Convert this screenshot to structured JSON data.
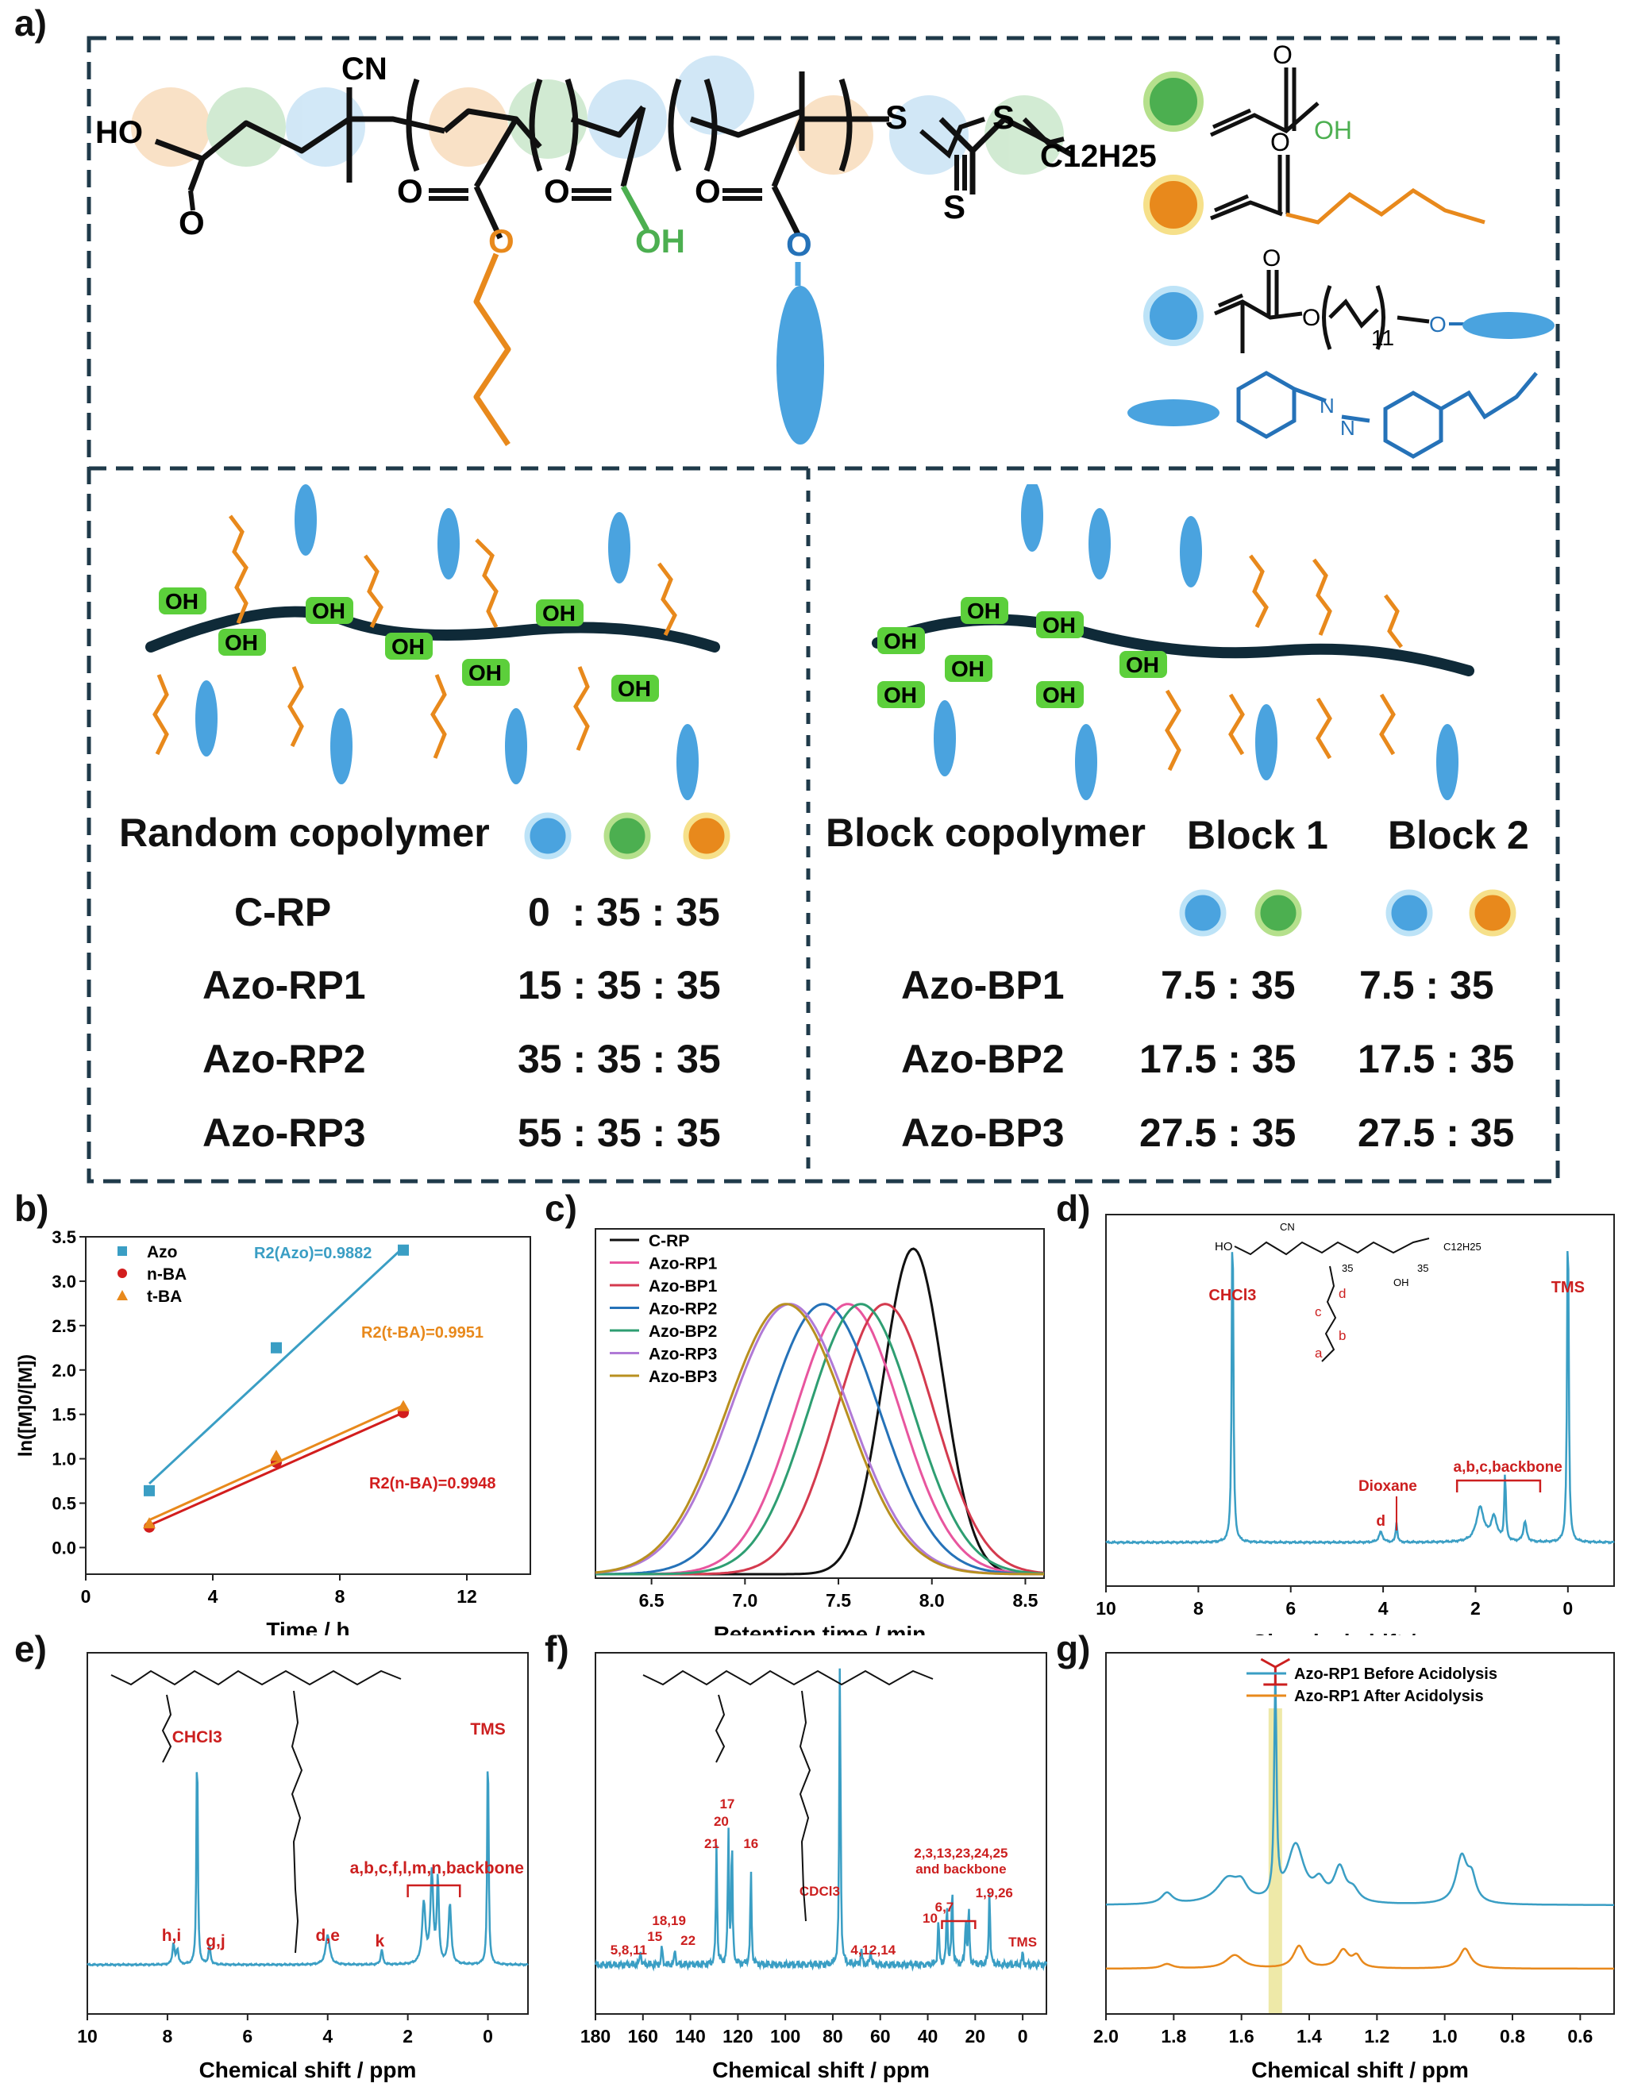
{
  "panel_labels": {
    "a": "a)",
    "b": "b)",
    "c": "c)",
    "d": "d)",
    "e": "e)",
    "f": "f)",
    "g": "g)"
  },
  "structure_top": {
    "cn": "CN",
    "ho": "HO",
    "o": "O",
    "oh": "OH",
    "s": "S",
    "c12h25": "C12H25",
    "legend_acid_oh": "OH",
    "legend_methacrylate_o": "O",
    "legend_n11": "11",
    "legend_n": "N"
  },
  "random": {
    "title": "Random copolymer",
    "oh_label": "OH",
    "rows": [
      {
        "name": "C-RP",
        "ratio": "0  : 35 : 35"
      },
      {
        "name": "Azo-RP1",
        "ratio": "15 : 35 : 35"
      },
      {
        "name": "Azo-RP2",
        "ratio": "35 : 35 : 35"
      },
      {
        "name": "Azo-RP3",
        "ratio": "55 : 35 : 35"
      }
    ]
  },
  "block": {
    "title": "Block copolymer",
    "block1": "Block 1",
    "block2": "Block 2",
    "oh_label": "OH",
    "rows": [
      {
        "name": "Azo-BP1",
        "r1": "7.5 : 35",
        "r2": "7.5 : 35"
      },
      {
        "name": "Azo-BP2",
        "r1": "17.5 : 35",
        "r2": "17.5 : 35"
      },
      {
        "name": "Azo-BP3",
        "r1": "27.5 : 35",
        "r2": "27.5 : 35"
      }
    ]
  },
  "colors": {
    "blue": "#4aa3df",
    "green": "#4caf50",
    "orange": "#e8891c",
    "red": "#cc1f1f",
    "teal": "#3a9ec4",
    "dash": "#1f3a4a"
  },
  "chart_data": [
    {
      "id": "b",
      "type": "scatter",
      "xlabel": "Time / h",
      "ylabel": "ln([M]0/[M])",
      "xlim": [
        0,
        14
      ],
      "ylim": [
        -0.3,
        3.5
      ],
      "xticks": [
        "0",
        "4",
        "8",
        "12"
      ],
      "yticks": [
        "0.0",
        "0.5",
        "1.0",
        "1.5",
        "2.0",
        "2.5",
        "3.0",
        "3.5"
      ],
      "series": [
        {
          "name": "Azo",
          "color": "#3a9ec4",
          "x": [
            2,
            6,
            10
          ],
          "y": [
            0.64,
            2.25,
            3.35
          ],
          "fit": [
            [
              2,
              0.72
            ],
            [
              10,
              3.38
            ]
          ],
          "r2": "R2(Azo)=0.9882"
        },
        {
          "name": "n-BA",
          "color": "#d21d1d",
          "x": [
            2,
            6,
            10
          ],
          "y": [
            0.23,
            0.96,
            1.52
          ],
          "fit": [
            [
              2,
              0.25
            ],
            [
              10,
              1.52
            ]
          ],
          "r2": "R2(n-BA)=0.9948"
        },
        {
          "name": "t-BA",
          "color": "#e8891c",
          "x": [
            2,
            6,
            10
          ],
          "y": [
            0.27,
            1.03,
            1.59
          ],
          "fit": [
            [
              2,
              0.31
            ],
            [
              10,
              1.6
            ]
          ],
          "r2": "R2(t-BA)=0.9951"
        }
      ]
    },
    {
      "id": "c",
      "type": "line",
      "xlabel": "Retention time / min",
      "xlim": [
        6.2,
        8.6
      ],
      "xticks": [
        "6.5",
        "7.0",
        "7.5",
        "8.0",
        "8.5"
      ],
      "series": [
        {
          "name": "C-RP",
          "color": "#111111",
          "center": 7.9,
          "width": 0.16,
          "height": 1.0
        },
        {
          "name": "Azo-RP1",
          "color": "#e8559e",
          "center": 7.55,
          "width": 0.28,
          "height": 0.83
        },
        {
          "name": "Azo-BP1",
          "color": "#d43a4e",
          "center": 7.75,
          "width": 0.26,
          "height": 0.83
        },
        {
          "name": "Azo-RP2",
          "color": "#2572b8",
          "center": 7.42,
          "width": 0.3,
          "height": 0.83
        },
        {
          "name": "Azo-BP2",
          "color": "#2e9e72",
          "center": 7.62,
          "width": 0.28,
          "height": 0.83
        },
        {
          "name": "Azo-RP3",
          "color": "#b07ad6",
          "center": 7.24,
          "width": 0.32,
          "height": 0.83
        },
        {
          "name": "Azo-BP3",
          "color": "#b89020",
          "center": 7.22,
          "width": 0.32,
          "height": 0.83
        }
      ]
    },
    {
      "id": "d",
      "type": "line",
      "xlabel": "Chemical shift / ppm",
      "xlim": [
        10,
        -1
      ],
      "xticks": [
        "10",
        "8",
        "6",
        "4",
        "2",
        "0"
      ],
      "peaks": [
        {
          "ppm": 7.26,
          "h": 1.0,
          "w": 0.02
        },
        {
          "ppm": 0.0,
          "h": 1.0,
          "w": 0.02
        },
        {
          "ppm": 3.71,
          "h": 0.06,
          "w": 0.02
        },
        {
          "ppm": 4.05,
          "h": 0.03,
          "w": 0.05
        },
        {
          "ppm": 1.9,
          "h": 0.1,
          "w": 0.1
        },
        {
          "ppm": 1.6,
          "h": 0.07,
          "w": 0.08
        },
        {
          "ppm": 1.36,
          "h": 0.2,
          "w": 0.02
        },
        {
          "ppm": 0.93,
          "h": 0.06,
          "w": 0.04
        }
      ],
      "labels": {
        "chcl3": "CHCl3",
        "tms": "TMS",
        "dioxane": "Dioxane",
        "d": "d",
        "group": "a,b,c,backbone",
        "sa": "a",
        "sb": "b",
        "sc": "c",
        "sd": "d",
        "n35": "35",
        "n35b": "35",
        "cn": "CN",
        "oh": "OH",
        "ho": "HO",
        "c12": "C12H25"
      }
    },
    {
      "id": "e",
      "type": "line",
      "xlabel": "Chemical shift / ppm",
      "xlim": [
        10,
        -1
      ],
      "xticks": [
        "10",
        "8",
        "6",
        "4",
        "2",
        "0"
      ],
      "peaks": [
        {
          "ppm": 7.85,
          "h": 0.07,
          "w": 0.03
        },
        {
          "ppm": 7.75,
          "h": 0.05,
          "w": 0.03
        },
        {
          "ppm": 7.26,
          "h": 0.75,
          "w": 0.02
        },
        {
          "ppm": 6.95,
          "h": 0.06,
          "w": 0.03
        },
        {
          "ppm": 4.0,
          "h": 0.1,
          "w": 0.06
        },
        {
          "ppm": 2.65,
          "h": 0.05,
          "w": 0.03
        },
        {
          "ppm": 1.6,
          "h": 0.2,
          "w": 0.05
        },
        {
          "ppm": 1.4,
          "h": 0.3,
          "w": 0.04
        },
        {
          "ppm": 1.25,
          "h": 0.28,
          "w": 0.03
        },
        {
          "ppm": 0.95,
          "h": 0.2,
          "w": 0.04
        },
        {
          "ppm": 0.0,
          "h": 0.75,
          "w": 0.02
        }
      ],
      "labels": {
        "chcl3": "CHCl3",
        "tms": "TMS",
        "hi": "h,i",
        "gj": "g,j",
        "de": "d,e",
        "k": "k",
        "group": "a,b,c,f,l,m,n,backbone"
      }
    },
    {
      "id": "f",
      "type": "line",
      "xlabel": "Chemical shift / ppm",
      "xlim": [
        180,
        -10
      ],
      "xticks": [
        "180",
        "160",
        "140",
        "120",
        "100",
        "80",
        "60",
        "40",
        "20",
        "0"
      ],
      "peaks": [
        {
          "ppm": 77.0,
          "h": 1.0,
          "w": 0.3
        },
        {
          "ppm": 129.0,
          "h": 0.38,
          "w": 0.3
        },
        {
          "ppm": 124.0,
          "h": 0.42,
          "w": 0.3
        },
        {
          "ppm": 122.5,
          "h": 0.4,
          "w": 0.3
        },
        {
          "ppm": 114.5,
          "h": 0.3,
          "w": 0.3
        },
        {
          "ppm": 161.0,
          "h": 0.05,
          "w": 0.3
        },
        {
          "ppm": 152.0,
          "h": 0.06,
          "w": 0.3
        },
        {
          "ppm": 146.5,
          "h": 0.05,
          "w": 0.3
        },
        {
          "ppm": 68.0,
          "h": 0.05,
          "w": 0.3
        },
        {
          "ppm": 64.0,
          "h": 0.05,
          "w": 0.3
        },
        {
          "ppm": 35.5,
          "h": 0.15,
          "w": 0.3
        },
        {
          "ppm": 31.9,
          "h": 0.2,
          "w": 0.3
        },
        {
          "ppm": 29.7,
          "h": 0.25,
          "w": 0.3
        },
        {
          "ppm": 24.0,
          "h": 0.15,
          "w": 0.3
        },
        {
          "ppm": 22.7,
          "h": 0.18,
          "w": 0.3
        },
        {
          "ppm": 14.0,
          "h": 0.25,
          "w": 0.3
        },
        {
          "ppm": 0.0,
          "h": 0.04,
          "w": 0.3
        }
      ],
      "labels": {
        "cdcl3": "CDCl3",
        "tms": "TMS",
        "l17": "17",
        "l20": "20",
        "l21": "21",
        "l16": "16",
        "l1819": "18,19",
        "l15": "15",
        "l22": "22",
        "l58": "5,8,11",
        "l41214": "4,12,14",
        "l67": "6,7",
        "l10": "10",
        "l19": "1,9,26",
        "group1": "2,3,13,23,24,25",
        "group2": "and backbone"
      }
    },
    {
      "id": "g",
      "type": "line",
      "xlabel": "Chemical shift / ppm",
      "xlim": [
        2.0,
        0.5
      ],
      "xticks": [
        "2.0",
        "1.8",
        "1.6",
        "1.4",
        "1.2",
        "1.0",
        "0.8",
        "0.6"
      ],
      "series": [
        {
          "name": "Azo-RP1 Before Acidolysis",
          "color": "#3a9ec4"
        },
        {
          "name": "Azo-RP1 After Acidolysis",
          "color": "#e8891c"
        }
      ]
    }
  ]
}
